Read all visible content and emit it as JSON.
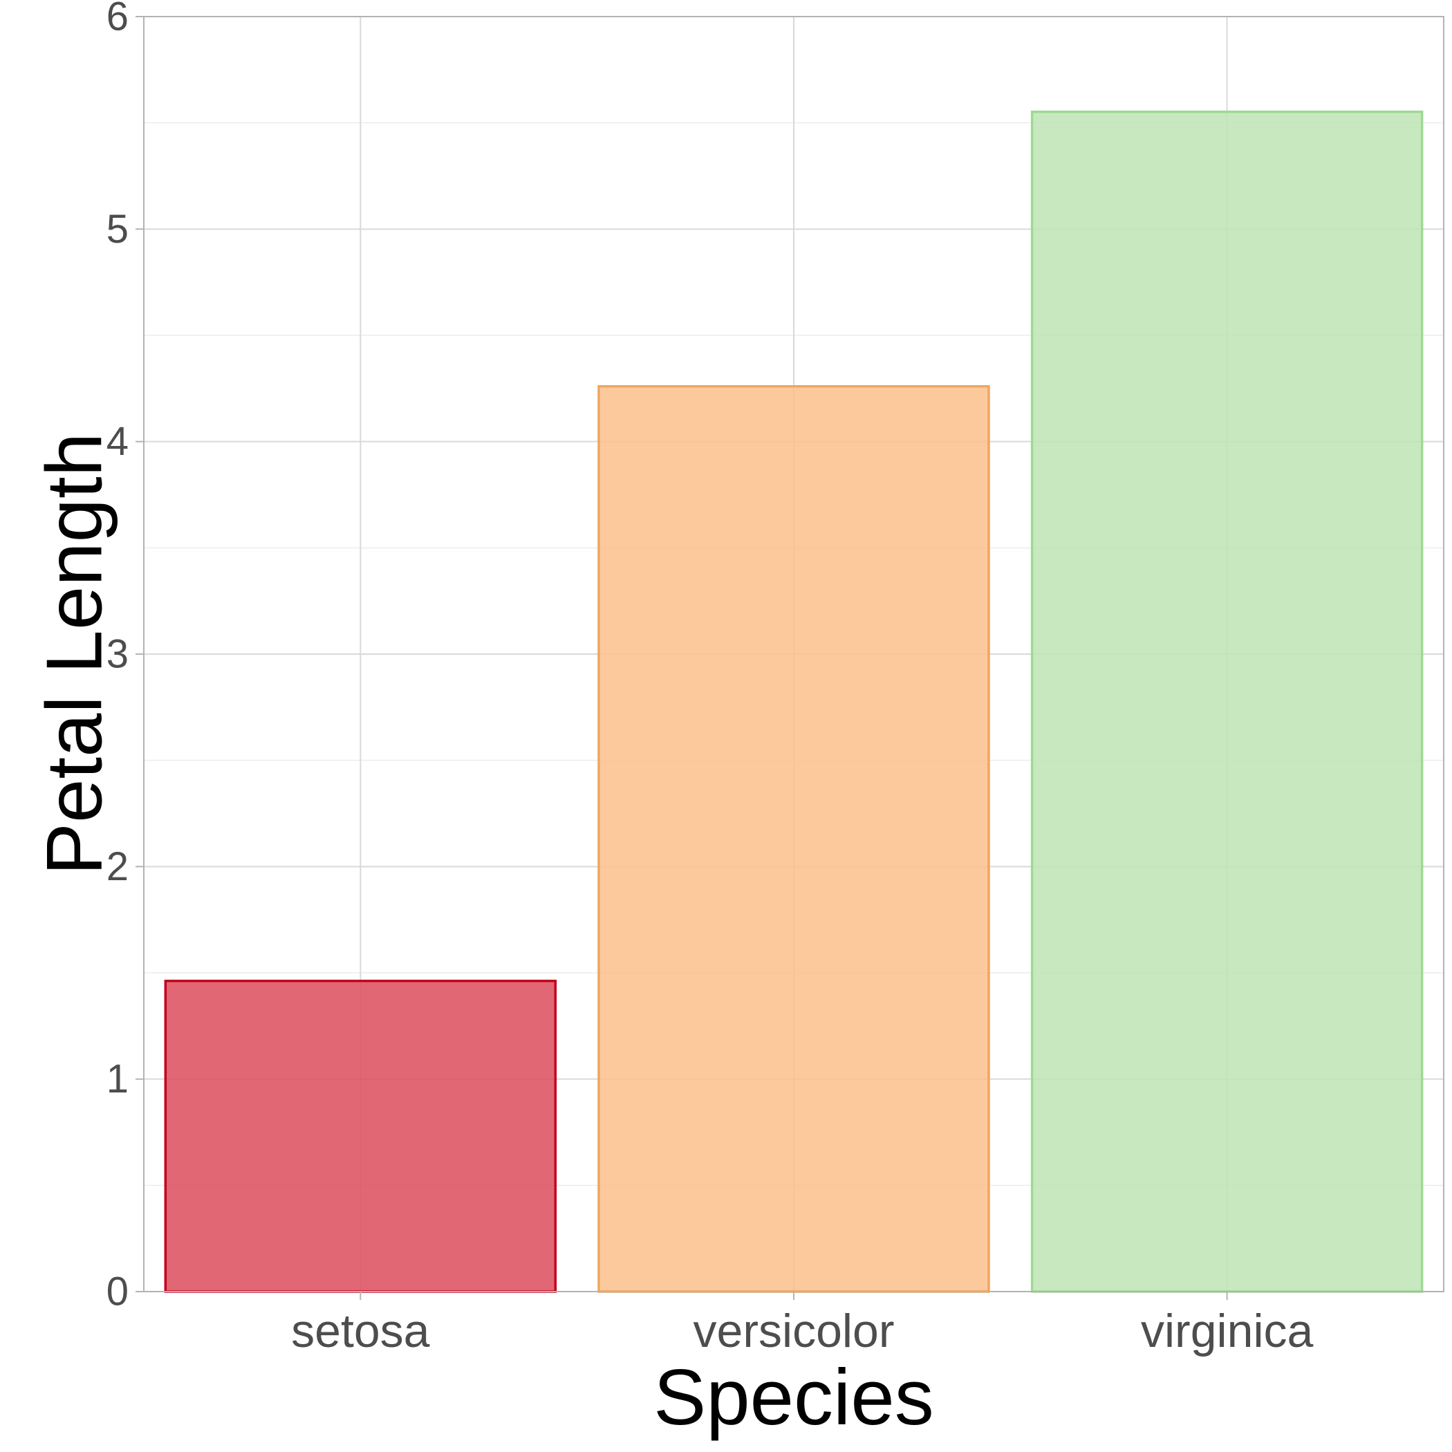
{
  "chart_data": {
    "type": "bar",
    "title": "",
    "xlabel": "Species",
    "ylabel": "Petal Length",
    "categories": [
      "setosa",
      "versicolor",
      "virginica"
    ],
    "values": [
      1.462,
      4.26,
      5.552
    ],
    "ylim": [
      0,
      6
    ],
    "yticks": [
      0,
      1,
      2,
      3,
      4,
      5,
      6
    ],
    "ytick_labels": [
      "0",
      "1",
      "2",
      "3",
      "4",
      "5",
      "6"
    ],
    "grid": true,
    "legend": "none",
    "colors": {
      "fill": [
        "#dc4c5c",
        "#fbbf8c",
        "#bee5b4"
      ],
      "stroke": [
        "#c1001c",
        "#f1a55e",
        "#9dda93"
      ],
      "grid_major": "#d9d9d9",
      "grid_minor": "#ececec",
      "panel_border": "#b3b3b3"
    }
  }
}
